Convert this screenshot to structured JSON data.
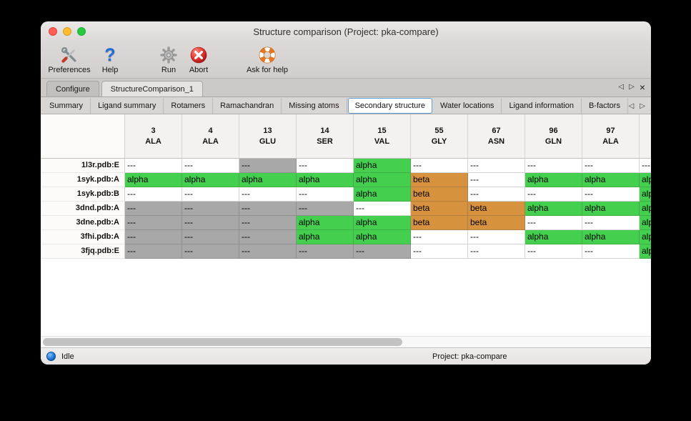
{
  "window": {
    "title": "Structure comparison (Project: pka-compare)"
  },
  "icons": {
    "prev": "◁",
    "next": "▷",
    "close": "×"
  },
  "toolbar": {
    "items": [
      {
        "label": "Preferences",
        "icon": "tools-icon"
      },
      {
        "label": "Help",
        "icon": "question-icon"
      },
      {
        "label": "Run",
        "icon": "gear-icon"
      },
      {
        "label": "Abort",
        "icon": "abort-icon"
      },
      {
        "label": "Ask for help",
        "icon": "lifebuoy-icon"
      }
    ]
  },
  "main_tabs": {
    "items": [
      {
        "label": "Configure",
        "selected": false
      },
      {
        "label": "StructureComparison_1",
        "selected": true
      }
    ]
  },
  "sub_tabs": {
    "items": [
      "Summary",
      "Ligand summary",
      "Rotamers",
      "Ramachandran",
      "Missing atoms",
      "Secondary structure",
      "Water locations",
      "Ligand information",
      "B-factors"
    ],
    "selected": "Secondary structure"
  },
  "colors": {
    "alpha_green": "#44d04e",
    "beta_orange": "#d6923f",
    "missing_gray": "#a8a8a8"
  },
  "table": {
    "columns": [
      {
        "num": "3",
        "res": "ALA"
      },
      {
        "num": "4",
        "res": "ALA"
      },
      {
        "num": "13",
        "res": "GLU"
      },
      {
        "num": "14",
        "res": "SER"
      },
      {
        "num": "15",
        "res": "VAL"
      },
      {
        "num": "55",
        "res": "GLY"
      },
      {
        "num": "67",
        "res": "ASN"
      },
      {
        "num": "96",
        "res": "GLN"
      },
      {
        "num": "97",
        "res": "ALA"
      },
      {
        "num": "",
        "res": ""
      }
    ],
    "rows": [
      {
        "label": "1l3r.pdb:E",
        "cells": [
          [
            "---",
            "blank"
          ],
          [
            "---",
            "blank"
          ],
          [
            "---",
            "gray"
          ],
          [
            "---",
            "blank"
          ],
          [
            "alpha",
            "alpha"
          ],
          [
            "---",
            "blank"
          ],
          [
            "---",
            "blank"
          ],
          [
            "---",
            "blank"
          ],
          [
            "---",
            "blank"
          ],
          [
            "---",
            "blank"
          ]
        ]
      },
      {
        "label": "1syk.pdb:A",
        "cells": [
          [
            "alpha",
            "alpha"
          ],
          [
            "alpha",
            "alpha"
          ],
          [
            "alpha",
            "alpha"
          ],
          [
            "alpha",
            "alpha"
          ],
          [
            "alpha",
            "alpha"
          ],
          [
            "beta",
            "beta"
          ],
          [
            "---",
            "blank"
          ],
          [
            "alpha",
            "alpha"
          ],
          [
            "alpha",
            "alpha"
          ],
          [
            "alpha",
            "alpha"
          ]
        ]
      },
      {
        "label": "1syk.pdb:B",
        "cells": [
          [
            "---",
            "blank"
          ],
          [
            "---",
            "blank"
          ],
          [
            "---",
            "blank"
          ],
          [
            "---",
            "blank"
          ],
          [
            "alpha",
            "alpha"
          ],
          [
            "beta",
            "beta"
          ],
          [
            "---",
            "blank"
          ],
          [
            "---",
            "blank"
          ],
          [
            "---",
            "blank"
          ],
          [
            "alpha",
            "alpha"
          ]
        ]
      },
      {
        "label": "3dnd.pdb:A",
        "cells": [
          [
            "---",
            "gray"
          ],
          [
            "---",
            "gray"
          ],
          [
            "---",
            "gray"
          ],
          [
            "---",
            "gray"
          ],
          [
            "---",
            "blank"
          ],
          [
            "beta",
            "beta"
          ],
          [
            "beta",
            "beta"
          ],
          [
            "alpha",
            "alpha"
          ],
          [
            "alpha",
            "alpha"
          ],
          [
            "alpha",
            "alpha"
          ]
        ]
      },
      {
        "label": "3dne.pdb:A",
        "cells": [
          [
            "---",
            "gray"
          ],
          [
            "---",
            "gray"
          ],
          [
            "---",
            "gray"
          ],
          [
            "alpha",
            "alpha"
          ],
          [
            "alpha",
            "alpha"
          ],
          [
            "beta",
            "beta"
          ],
          [
            "beta",
            "beta"
          ],
          [
            "---",
            "blank"
          ],
          [
            "---",
            "blank"
          ],
          [
            "alpha",
            "alpha"
          ]
        ]
      },
      {
        "label": "3fhi.pdb:A",
        "cells": [
          [
            "---",
            "gray"
          ],
          [
            "---",
            "gray"
          ],
          [
            "---",
            "gray"
          ],
          [
            "alpha",
            "alpha"
          ],
          [
            "alpha",
            "alpha"
          ],
          [
            "---",
            "blank"
          ],
          [
            "---",
            "blank"
          ],
          [
            "alpha",
            "alpha"
          ],
          [
            "alpha",
            "alpha"
          ],
          [
            "alpha",
            "alpha"
          ]
        ]
      },
      {
        "label": "3fjq.pdb:E",
        "cells": [
          [
            "---",
            "gray"
          ],
          [
            "---",
            "gray"
          ],
          [
            "---",
            "gray"
          ],
          [
            "---",
            "gray"
          ],
          [
            "---",
            "gray"
          ],
          [
            "---",
            "blank"
          ],
          [
            "---",
            "blank"
          ],
          [
            "---",
            "blank"
          ],
          [
            "---",
            "blank"
          ],
          [
            "alpha",
            "alpha"
          ]
        ]
      }
    ]
  },
  "statusbar": {
    "status": "Idle",
    "project": "Project: pka-compare"
  }
}
